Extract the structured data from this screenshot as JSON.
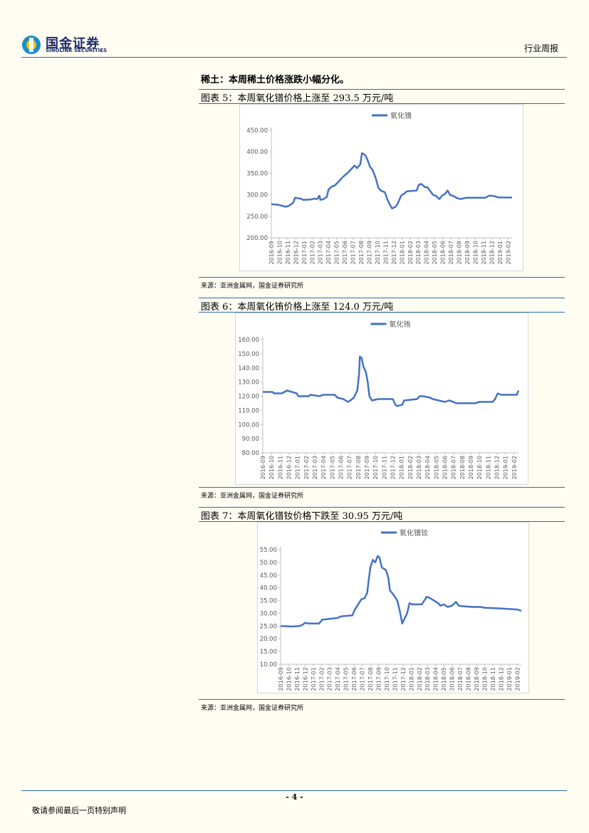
{
  "header": {
    "logo_cn": "国金证券",
    "logo_en": "SINOLINK SECURITIES",
    "report_type": "行业周报"
  },
  "section_title": "稀土：本周稀土价格涨跌小幅分化。",
  "figures": [
    {
      "title": "图表 5：本周氧化镨价格上涨至 293.5 万元/吨",
      "source": "来源：亚洲金属网，国金证券研究所"
    },
    {
      "title": "图表 6：本周氧化铕价格上涨至 124.0 万元/吨",
      "source": "来源：亚洲金属网，国金证券研究所"
    },
    {
      "title": "图表 7：本周氧化镨钕价格下跌至 30.95 万元/吨",
      "source": "来源：亚洲金属网，国金证券研究所"
    }
  ],
  "footer": {
    "page_number": "- 4 -",
    "disclaimer": "敬请参阅最后一页特别声明"
  },
  "colors": {
    "line": "#4472c4",
    "rule": "#2a6fa8"
  },
  "chart_data": [
    {
      "type": "line",
      "legend": "氧化镨",
      "legend_position": "top-center",
      "ylim": [
        200,
        450
      ],
      "yticks": [
        "450.00",
        "400.00",
        "350.00",
        "300.00",
        "250.00",
        "200.00"
      ],
      "x_labels": [
        "2016-09",
        "2016-10",
        "2016-11",
        "2016-12",
        "2017-01",
        "2017-02",
        "2017-03",
        "2017-04",
        "2017-05",
        "2017-06",
        "2017-07",
        "2017-08",
        "2017-09",
        "2017-10",
        "2017-11",
        "2017-12",
        "2018-01",
        "2018-02",
        "2018-03",
        "2018-04",
        "2018-05",
        "2018-06",
        "2018-07",
        "2018-08",
        "2018-09",
        "2018-10",
        "2018-11",
        "2018-12",
        "2019-01",
        "2019-02"
      ],
      "x_span": [
        0,
        29.5
      ],
      "points": [
        [
          0,
          278
        ],
        [
          0.8,
          277
        ],
        [
          1.4,
          274
        ],
        [
          1.8,
          272
        ],
        [
          2.2,
          275
        ],
        [
          2.7,
          282
        ],
        [
          2.9,
          293
        ],
        [
          3.6,
          291
        ],
        [
          3.9,
          288
        ],
        [
          4.8,
          289
        ],
        [
          5.3,
          291
        ],
        [
          5.6,
          290
        ],
        [
          5.9,
          298
        ],
        [
          6.0,
          288
        ],
        [
          6.4,
          290
        ],
        [
          6.8,
          295
        ],
        [
          7.0,
          312
        ],
        [
          7.4,
          319
        ],
        [
          7.8,
          322
        ],
        [
          8.2,
          330
        ],
        [
          8.8,
          342
        ],
        [
          9.3,
          350
        ],
        [
          9.8,
          360
        ],
        [
          10.2,
          368
        ],
        [
          10.5,
          362
        ],
        [
          10.9,
          371
        ],
        [
          11.1,
          397
        ],
        [
          11.5,
          392
        ],
        [
          11.7,
          385
        ],
        [
          12.1,
          365
        ],
        [
          12.4,
          358
        ],
        [
          12.8,
          338
        ],
        [
          13.1,
          317
        ],
        [
          13.4,
          310
        ],
        [
          13.9,
          306
        ],
        [
          14.2,
          290
        ],
        [
          14.5,
          278
        ],
        [
          14.8,
          268
        ],
        [
          15.2,
          272
        ],
        [
          15.5,
          280
        ],
        [
          15.9,
          298
        ],
        [
          16.3,
          303
        ],
        [
          16.6,
          308
        ],
        [
          17.8,
          310
        ],
        [
          18.1,
          324
        ],
        [
          18.4,
          325
        ],
        [
          18.8,
          318
        ],
        [
          19.1,
          318
        ],
        [
          19.5,
          308
        ],
        [
          19.8,
          300
        ],
        [
          20.2,
          297
        ],
        [
          20.6,
          290
        ],
        [
          20.9,
          298
        ],
        [
          21.3,
          302
        ],
        [
          21.6,
          310
        ],
        [
          21.9,
          300
        ],
        [
          22.3,
          297
        ],
        [
          22.8,
          292
        ],
        [
          23.2,
          290
        ],
        [
          23.6,
          292
        ],
        [
          24.0,
          293
        ],
        [
          25.5,
          293
        ],
        [
          26.2,
          293
        ],
        [
          26.7,
          298
        ],
        [
          27.3,
          297
        ],
        [
          27.8,
          294
        ],
        [
          29.5,
          293.5
        ]
      ]
    },
    {
      "type": "line",
      "legend": "氧化铕",
      "legend_position": "top-center",
      "ylim": [
        80,
        160
      ],
      "yticks": [
        "160.00",
        "150.00",
        "140.00",
        "130.00",
        "120.00",
        "110.00",
        "100.00",
        "90.00",
        "80.00"
      ],
      "x_labels": [
        "2016-09",
        "2016-10",
        "2016-11",
        "2016-12",
        "2017-01",
        "2017-02",
        "2017-03",
        "2017-04",
        "2017-05",
        "2017-06",
        "2017-07",
        "2017-08",
        "2017-09",
        "2017-10",
        "2017-11",
        "2017-12",
        "2018-01",
        "2018-02",
        "2018-03",
        "2018-04",
        "2018-05",
        "2018-06",
        "2018-07",
        "2018-08",
        "2018-09",
        "2018-10",
        "2018-11",
        "2018-12",
        "2019-01",
        "2019-02"
      ],
      "x_span": [
        0,
        29.5
      ],
      "points": [
        [
          0,
          123
        ],
        [
          1.1,
          123
        ],
        [
          1.3,
          122
        ],
        [
          2.2,
          122
        ],
        [
          2.5,
          123
        ],
        [
          2.8,
          124
        ],
        [
          3.9,
          122
        ],
        [
          4.1,
          120
        ],
        [
          5.3,
          120
        ],
        [
          5.5,
          121
        ],
        [
          6.6,
          120
        ],
        [
          6.9,
          121
        ],
        [
          8.3,
          121
        ],
        [
          8.6,
          119
        ],
        [
          9.3,
          118
        ],
        [
          9.8,
          116
        ],
        [
          10.1,
          117
        ],
        [
          10.5,
          119
        ],
        [
          10.9,
          124
        ],
        [
          11.1,
          135
        ],
        [
          11.2,
          148
        ],
        [
          11.4,
          147
        ],
        [
          11.6,
          141
        ],
        [
          11.9,
          137
        ],
        [
          12.1,
          130
        ],
        [
          12.3,
          120
        ],
        [
          12.6,
          117
        ],
        [
          13.3,
          118
        ],
        [
          13.6,
          118
        ],
        [
          15.0,
          118
        ],
        [
          15.3,
          114
        ],
        [
          15.5,
          113
        ],
        [
          16.1,
          114
        ],
        [
          16.3,
          117
        ],
        [
          17.8,
          118
        ],
        [
          18.1,
          120
        ],
        [
          18.5,
          120
        ],
        [
          19.3,
          119
        ],
        [
          19.6,
          118
        ],
        [
          20.3,
          117
        ],
        [
          21.0,
          116
        ],
        [
          21.5,
          117
        ],
        [
          22.0,
          116
        ],
        [
          22.3,
          115
        ],
        [
          23.5,
          115
        ],
        [
          24.5,
          115
        ],
        [
          25.0,
          116
        ],
        [
          26.5,
          116
        ],
        [
          26.8,
          118
        ],
        [
          27.1,
          122
        ],
        [
          27.5,
          121
        ],
        [
          29.3,
          121
        ],
        [
          29.5,
          124
        ]
      ]
    },
    {
      "type": "line",
      "legend": "氧化镨钕",
      "legend_position": "top-center",
      "ylim": [
        10,
        55
      ],
      "yticks": [
        "55.00",
        "50.00",
        "45.00",
        "40.00",
        "35.00",
        "30.00",
        "25.00",
        "20.00",
        "15.00",
        "10.00"
      ],
      "x_labels": [
        "2016-09",
        "2016-10",
        "2016-11",
        "2016-12",
        "2017-01",
        "2017-02",
        "2017-03",
        "2017-04",
        "2017-05",
        "2017-06",
        "2017-07",
        "2017-08",
        "2017-09",
        "2017-10",
        "2017-11",
        "2017-12",
        "2018-01",
        "2018-02",
        "2018-03",
        "2018-04",
        "2018-05",
        "2018-06",
        "2018-07",
        "2018-08",
        "2018-09",
        "2018-10",
        "2018-11",
        "2018-12",
        "2019-01",
        "2019-02"
      ],
      "x_span": [
        0,
        29.5
      ],
      "points": [
        [
          0,
          25
        ],
        [
          1.4,
          24.8
        ],
        [
          2.3,
          25
        ],
        [
          2.7,
          25.5
        ],
        [
          3.0,
          26.3
        ],
        [
          3.4,
          26.0
        ],
        [
          4.7,
          26.0
        ],
        [
          5.1,
          27.5
        ],
        [
          6.0,
          27.8
        ],
        [
          7.0,
          28.2
        ],
        [
          7.4,
          28.8
        ],
        [
          8.8,
          29.2
        ],
        [
          9.1,
          31.5
        ],
        [
          9.5,
          33.5
        ],
        [
          9.9,
          35.5
        ],
        [
          10.3,
          36
        ],
        [
          10.6,
          38
        ],
        [
          10.8,
          43
        ],
        [
          11.0,
          48
        ],
        [
          11.3,
          51
        ],
        [
          11.6,
          50
        ],
        [
          11.9,
          52.5
        ],
        [
          12.1,
          52
        ],
        [
          12.4,
          48
        ],
        [
          12.9,
          47
        ],
        [
          13.2,
          44
        ],
        [
          13.4,
          39
        ],
        [
          13.9,
          37
        ],
        [
          14.3,
          35
        ],
        [
          14.6,
          31
        ],
        [
          14.9,
          26
        ],
        [
          15.2,
          28
        ],
        [
          15.5,
          30
        ],
        [
          15.8,
          34
        ],
        [
          16.1,
          33.5
        ],
        [
          17.3,
          33.5
        ],
        [
          17.6,
          35
        ],
        [
          17.9,
          36.5
        ],
        [
          18.3,
          36
        ],
        [
          18.8,
          35
        ],
        [
          19.3,
          34
        ],
        [
          19.6,
          33
        ],
        [
          20.0,
          33.5
        ],
        [
          20.5,
          32.5
        ],
        [
          21.0,
          33
        ],
        [
          21.5,
          34.5
        ],
        [
          21.8,
          33
        ],
        [
          22.2,
          32.8
        ],
        [
          23.5,
          32.5
        ],
        [
          24.5,
          32.5
        ],
        [
          25.0,
          32.2
        ],
        [
          26.3,
          32
        ],
        [
          27.5,
          31.8
        ],
        [
          29.0,
          31.5
        ],
        [
          29.5,
          30.95
        ]
      ]
    }
  ]
}
